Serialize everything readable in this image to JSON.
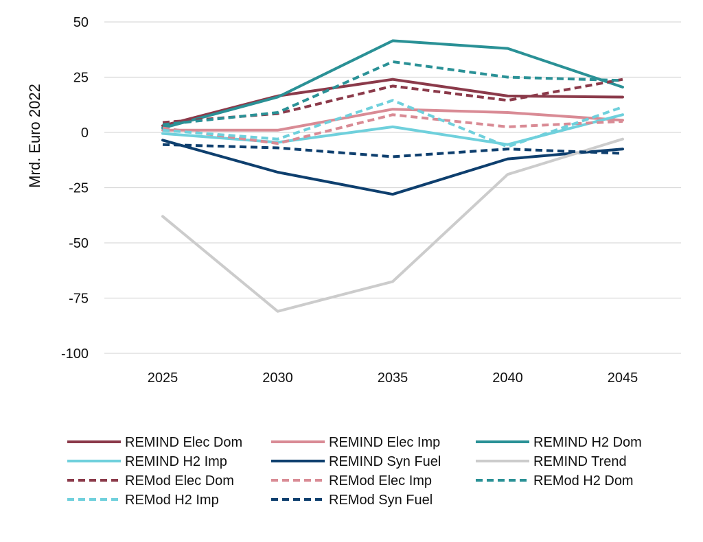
{
  "chart_data": {
    "type": "line",
    "title": "",
    "xlabel": "",
    "ylabel": "Mrd. Euro 2022",
    "x": [
      "2025",
      "2030",
      "2035",
      "2040",
      "2045"
    ],
    "ylim": [
      -100,
      50
    ],
    "yticks": [
      50,
      25,
      0,
      -25,
      -50,
      -75,
      -100
    ],
    "ytick_labels": [
      "50",
      "25",
      "0",
      "-25",
      "-50",
      "-75",
      "-100"
    ],
    "grid": "horizontal",
    "legend_position": "bottom",
    "series": [
      {
        "name": "REMIND Elec Dom",
        "color": "#8b3a4a",
        "dash": "solid",
        "values": [
          3,
          16.5,
          24,
          16.5,
          16
        ]
      },
      {
        "name": "REMIND Elec Imp",
        "color": "#d98b95",
        "dash": "solid",
        "values": [
          1,
          1,
          10.5,
          9,
          5.5
        ]
      },
      {
        "name": "REMIND H2 Dom",
        "color": "#2a9196",
        "dash": "solid",
        "values": [
          2,
          16,
          41.5,
          38,
          20.5
        ]
      },
      {
        "name": "REMIND H2 Imp",
        "color": "#6fd0dc",
        "dash": "solid",
        "values": [
          -0.5,
          -4.5,
          2.5,
          -5.5,
          8
        ]
      },
      {
        "name": "REMIND Syn Fuel",
        "color": "#0e3f6e",
        "dash": "solid",
        "values": [
          -3.5,
          -18,
          -28,
          -12,
          -7.5
        ]
      },
      {
        "name": "REMIND Trend",
        "color": "#cccccc",
        "dash": "solid",
        "values": [
          -38,
          -81,
          -67.5,
          -19,
          -3
        ]
      },
      {
        "name": "REMod Elec Dom",
        "color": "#8b3a4a",
        "dash": "dashed",
        "values": [
          4.5,
          8.5,
          21,
          14.5,
          24
        ]
      },
      {
        "name": "REMod Elec Imp",
        "color": "#d98b95",
        "dash": "dashed",
        "values": [
          2,
          -5,
          8,
          2.5,
          5
        ]
      },
      {
        "name": "REMod H2 Dom",
        "color": "#2a9196",
        "dash": "dashed",
        "values": [
          3.5,
          9,
          32,
          25,
          23.5
        ]
      },
      {
        "name": "REMod H2 Imp",
        "color": "#6fd0dc",
        "dash": "dashed",
        "values": [
          1,
          -3,
          14.5,
          -6.5,
          11.5
        ]
      },
      {
        "name": "REMod Syn Fuel",
        "color": "#0e3f6e",
        "dash": "dashed",
        "values": [
          -5.5,
          -7,
          -11,
          -7.5,
          -9.5
        ]
      }
    ]
  }
}
